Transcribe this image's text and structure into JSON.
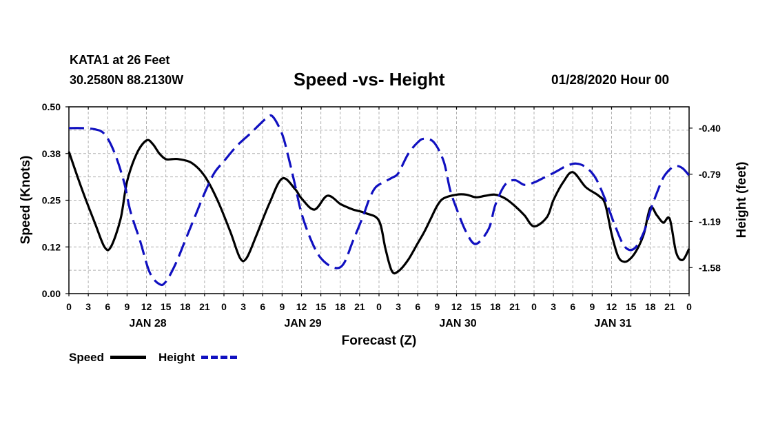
{
  "header": {
    "station": "KATA1 at 26 Feet",
    "coords": "30.2580N 88.2130W",
    "title": "Speed -vs- Height",
    "stamp": "01/28/2020 Hour 00"
  },
  "legend": {
    "speed_label": "Speed",
    "height_label": "Height"
  },
  "colors": {
    "speed": "#000000",
    "height": "#1010c0",
    "grid": "#b0b0b0"
  },
  "chart_data": {
    "type": "line",
    "title": "Speed -vs- Height",
    "xlabel": "Forecast (Z)",
    "ylabel": "Speed (Knots)",
    "y2label": "Height (feet)",
    "xlim": [
      0,
      96
    ],
    "ylim": [
      0,
      0.5
    ],
    "y2lim": [
      -1.8,
      -0.22
    ],
    "yticks": [
      "0.00",
      "0.12",
      "0.25",
      "0.38",
      "0.50"
    ],
    "yticks_values": [
      0,
      0.125,
      0.25,
      0.375,
      0.5
    ],
    "y2ticks": [
      "-0.40",
      "-0.79",
      "-1.19",
      "-1.58"
    ],
    "y2ticks_values": [
      -0.4,
      -0.79,
      -1.19,
      -1.58
    ],
    "xtick_labels": [
      "0",
      "3",
      "6",
      "9",
      "12",
      "15",
      "18",
      "21",
      "0",
      "3",
      "6",
      "9",
      "12",
      "15",
      "18",
      "21",
      "0",
      "3",
      "6",
      "9",
      "12",
      "15",
      "18",
      "21",
      "0",
      "3",
      "6",
      "9",
      "12",
      "15",
      "18",
      "21",
      "0"
    ],
    "day_labels": [
      {
        "text": "JAN 28",
        "hour": 12
      },
      {
        "text": "JAN 29",
        "hour": 36
      },
      {
        "text": "JAN 30",
        "hour": 60
      },
      {
        "text": "JAN 31",
        "hour": 84
      }
    ],
    "grid": true,
    "legend_position": "bottom-left",
    "series": [
      {
        "name": "Speed",
        "axis": "left",
        "style": "solid",
        "x": [
          0,
          2,
          4,
          5.5,
          6.5,
          8,
          9,
          10.5,
          12,
          13,
          14,
          15,
          16,
          17,
          19,
          21,
          23,
          25,
          26.5,
          27.5,
          29,
          31,
          33,
          35,
          36,
          38,
          40,
          42,
          43,
          44,
          46,
          48,
          49,
          50,
          51,
          52.5,
          54,
          55,
          56,
          57,
          58,
          60,
          61.5,
          63,
          64.5,
          66,
          67.5,
          69,
          70.5,
          72,
          74,
          75,
          76.5,
          78,
          80,
          82,
          83,
          84,
          85,
          86,
          87,
          88,
          89,
          90,
          91,
          92,
          93,
          94,
          95,
          96
        ],
        "values": [
          0.38,
          0.28,
          0.19,
          0.125,
          0.125,
          0.2,
          0.3,
          0.375,
          0.41,
          0.4,
          0.375,
          0.36,
          0.36,
          0.36,
          0.35,
          0.315,
          0.25,
          0.165,
          0.095,
          0.095,
          0.155,
          0.24,
          0.308,
          0.28,
          0.255,
          0.225,
          0.262,
          0.24,
          0.232,
          0.225,
          0.215,
          0.195,
          0.12,
          0.06,
          0.06,
          0.09,
          0.135,
          0.165,
          0.2,
          0.235,
          0.255,
          0.265,
          0.265,
          0.258,
          0.262,
          0.265,
          0.255,
          0.235,
          0.21,
          0.18,
          0.205,
          0.25,
          0.298,
          0.325,
          0.285,
          0.262,
          0.24,
          0.16,
          0.1,
          0.085,
          0.095,
          0.12,
          0.16,
          0.23,
          0.21,
          0.19,
          0.2,
          0.11,
          0.09,
          0.12
        ]
      },
      {
        "name": "Height",
        "axis": "right",
        "style": "dashed",
        "x": [
          0,
          2,
          4,
          5.5,
          7,
          8.5,
          9.5,
          11,
          12.5,
          14,
          15,
          16.5,
          18,
          19.5,
          21,
          22.5,
          24,
          26,
          28,
          29.5,
          30.5,
          31.5,
          33,
          34,
          35,
          36,
          37.5,
          39,
          41,
          42.5,
          44,
          45.5,
          46.5,
          47.5,
          49,
          50,
          51,
          52.5,
          54,
          55,
          56.5,
          58,
          59,
          60,
          61.5,
          63,
          65,
          66,
          67.5,
          69,
          70.5,
          72,
          73.5,
          75,
          76,
          77,
          78.5,
          80,
          81.5,
          83,
          84.5,
          86,
          87.5,
          89,
          90,
          91,
          92,
          93,
          94,
          95,
          96
        ],
        "values": [
          -0.4,
          -0.4,
          -0.41,
          -0.45,
          -0.6,
          -0.85,
          -1.1,
          -1.35,
          -1.62,
          -1.72,
          -1.7,
          -1.55,
          -1.35,
          -1.15,
          -0.95,
          -0.78,
          -0.68,
          -0.55,
          -0.45,
          -0.37,
          -0.32,
          -0.3,
          -0.45,
          -0.65,
          -0.88,
          -1.12,
          -1.35,
          -1.5,
          -1.58,
          -1.55,
          -1.35,
          -1.15,
          -1.0,
          -0.9,
          -0.85,
          -0.82,
          -0.78,
          -0.62,
          -0.52,
          -0.49,
          -0.52,
          -0.68,
          -0.92,
          -1.08,
          -1.28,
          -1.38,
          -1.25,
          -1.05,
          -0.88,
          -0.84,
          -0.88,
          -0.86,
          -0.82,
          -0.78,
          -0.75,
          -0.72,
          -0.7,
          -0.73,
          -0.82,
          -1.0,
          -1.22,
          -1.4,
          -1.42,
          -1.28,
          -1.1,
          -0.95,
          -0.82,
          -0.75,
          -0.72,
          -0.74,
          -0.8
        ]
      }
    ]
  }
}
